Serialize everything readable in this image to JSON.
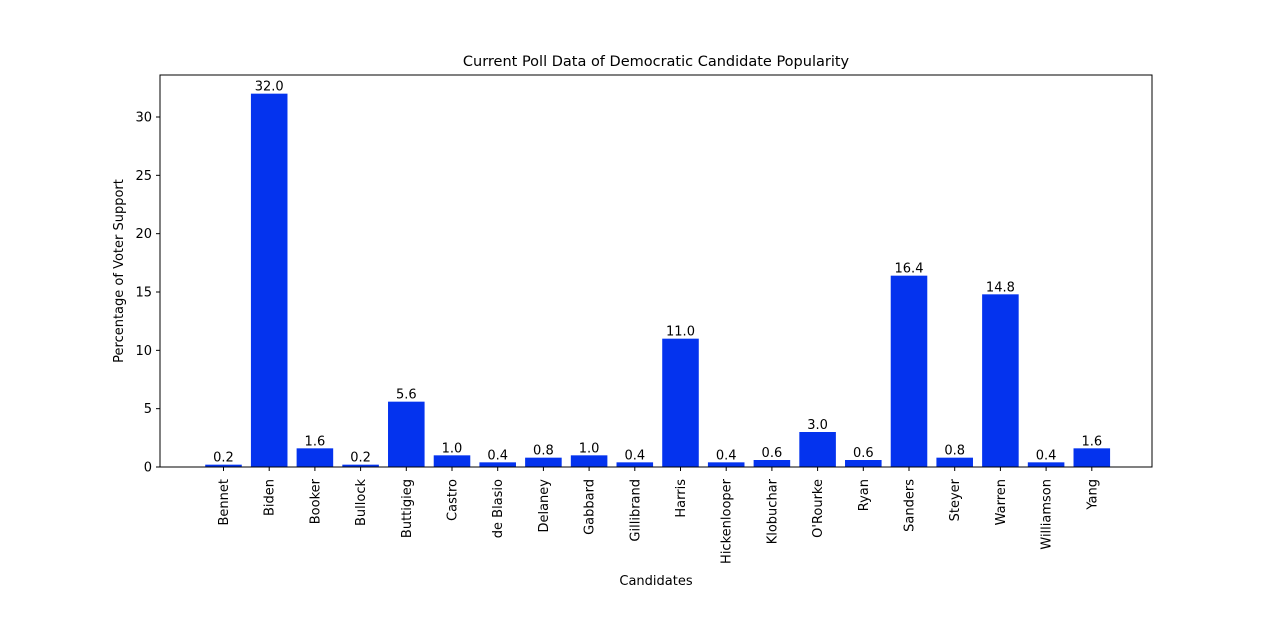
{
  "chart_data": {
    "type": "bar",
    "title": "Current Poll Data of Democratic Candidate Popularity",
    "xlabel": "Candidates",
    "ylabel": "Percentage of Voter Support",
    "categories": [
      "Bennet",
      "Biden",
      "Booker",
      "Bullock",
      "Buttigieg",
      "Castro",
      "de Blasio",
      "Delaney",
      "Gabbard",
      "Gillibrand",
      "Harris",
      "Hickenlooper",
      "Klobuchar",
      "O'Rourke",
      "Ryan",
      "Sanders",
      "Steyer",
      "Warren",
      "Williamson",
      "Yang"
    ],
    "values": [
      0.2,
      32.0,
      1.6,
      0.2,
      5.6,
      1.0,
      0.4,
      0.8,
      1.0,
      0.4,
      11.0,
      0.4,
      0.6,
      3.0,
      0.6,
      16.4,
      0.8,
      14.8,
      0.4,
      1.6
    ],
    "value_labels": [
      "0.2",
      "32.0",
      "1.6",
      "0.2",
      "5.6",
      "1.0",
      "0.4",
      "0.8",
      "1.0",
      "0.4",
      "11.0",
      "0.4",
      "0.6",
      "3.0",
      "0.6",
      "16.4",
      "0.8",
      "14.8",
      "0.4",
      "1.6"
    ],
    "yticks": [
      0,
      5,
      10,
      15,
      20,
      25,
      30
    ],
    "ytick_labels": [
      "0",
      "5",
      "10",
      "15",
      "20",
      "25",
      "30"
    ],
    "ylim": [
      0,
      33.6
    ],
    "bar_color": "#0433ee",
    "grid": false,
    "legend": false
  }
}
